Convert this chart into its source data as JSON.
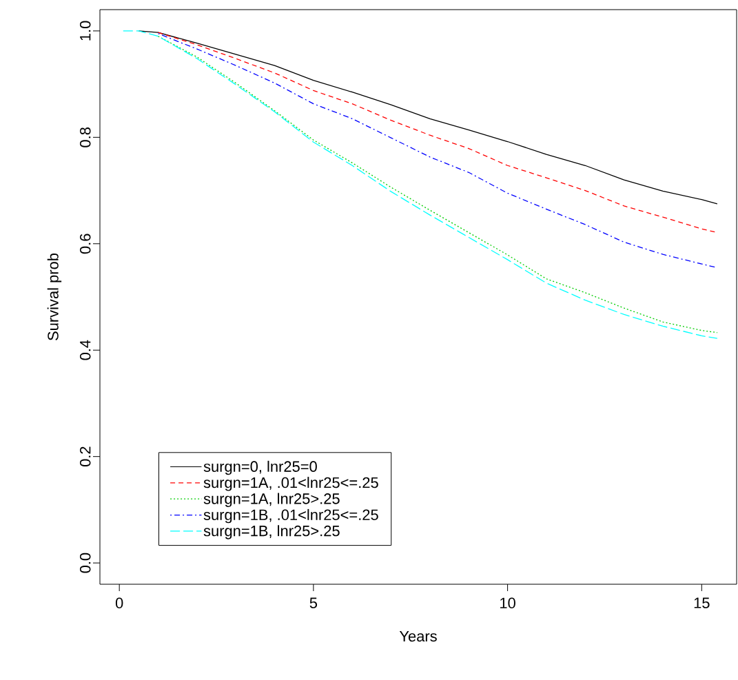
{
  "chart_data": {
    "type": "line",
    "xlabel": "Years",
    "ylabel": "Survival prob",
    "x": [
      0.1,
      0.5,
      1,
      2,
      3,
      4,
      5,
      6,
      7,
      8,
      9,
      10,
      11,
      12,
      13,
      14,
      15,
      15.4
    ],
    "series": [
      {
        "name": "surgn=0, lnr25=0",
        "color": "#000000",
        "line_style": "solid",
        "values": [
          null,
          1.0,
          0.997,
          0.977,
          0.956,
          0.935,
          0.907,
          0.885,
          0.861,
          0.835,
          0.814,
          0.792,
          0.768,
          0.747,
          0.72,
          0.699,
          0.683,
          0.675
        ]
      },
      {
        "name": "surgn=1A, .01<lnr25<=.25",
        "color": "#ff0000",
        "line_style": "dashed",
        "values": [
          null,
          null,
          0.997,
          0.974,
          0.948,
          0.921,
          0.888,
          0.863,
          0.832,
          0.804,
          0.779,
          0.747,
          0.724,
          0.7,
          0.671,
          0.65,
          0.628,
          0.621
        ]
      },
      {
        "name": "surgn=1A, lnr25>.25",
        "color": "#00cd00",
        "line_style": "dotted",
        "values": [
          null,
          null,
          0.99,
          0.951,
          0.902,
          0.85,
          0.795,
          0.752,
          0.706,
          0.663,
          0.621,
          0.579,
          0.534,
          0.508,
          0.479,
          0.453,
          0.437,
          0.433
        ]
      },
      {
        "name": "surgn=1B, .01<lnr25<=.25",
        "color": "#0000ff",
        "line_style": "dashdot",
        "values": [
          null,
          null,
          0.995,
          0.966,
          0.935,
          0.902,
          0.863,
          0.835,
          0.799,
          0.763,
          0.734,
          0.695,
          0.665,
          0.636,
          0.603,
          0.58,
          0.562,
          0.555
        ]
      },
      {
        "name": "surgn=1B, lnr25>.25",
        "color": "#00ffff",
        "line_style": "longdash",
        "values": [
          1.0,
          1.0,
          0.99,
          0.948,
          0.899,
          0.848,
          0.791,
          0.747,
          0.698,
          0.654,
          0.612,
          0.57,
          0.526,
          0.494,
          0.467,
          0.445,
          0.427,
          0.422
        ]
      }
    ],
    "xlim": [
      -0.5,
      15.9
    ],
    "ylim": [
      -0.04,
      1.04
    ],
    "xticks": [
      0,
      5,
      10,
      15
    ],
    "yticks": [
      {
        "value": 0,
        "label": "0.0"
      },
      {
        "value": 0.2,
        "label": "0.2"
      },
      {
        "value": 0.4,
        "label": "0.4"
      },
      {
        "value": 0.6,
        "label": "0.6"
      },
      {
        "value": 0.8,
        "label": "0.8"
      },
      {
        "value": 1,
        "label": "1.0"
      }
    ],
    "grid": false,
    "legend": "bottom left"
  }
}
